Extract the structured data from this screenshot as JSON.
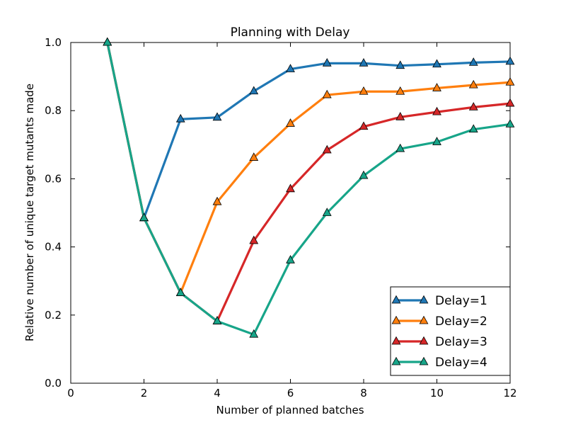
{
  "chart_data": {
    "type": "line",
    "title": "Planning with Delay",
    "xlabel": "Number of planned batches",
    "ylabel": "Relative number of unique target mutants made",
    "xlim": [
      0,
      12
    ],
    "ylim": [
      0,
      1.0
    ],
    "x_ticks": [
      "0",
      "2",
      "4",
      "6",
      "8",
      "10",
      "12"
    ],
    "y_ticks": [
      "0.0",
      "0.2",
      "0.4",
      "0.6",
      "0.8",
      "1.0"
    ],
    "grid": false,
    "legend_position": "bottom-right",
    "marker": "triangle",
    "series": [
      {
        "name": "Delay=1",
        "color": "#1f77b4",
        "x": [
          1,
          2,
          3,
          4,
          5,
          6,
          7,
          8,
          9,
          10,
          11,
          12
        ],
        "y": [
          1.0,
          0.485,
          0.775,
          0.78,
          0.857,
          0.922,
          0.939,
          0.939,
          0.932,
          0.936,
          0.941,
          0.944
        ]
      },
      {
        "name": "Delay=2",
        "color": "#ff7f0e",
        "x": [
          1,
          2,
          3,
          4,
          5,
          6,
          7,
          8,
          9,
          10,
          11,
          12
        ],
        "y": [
          1.0,
          0.485,
          0.265,
          0.532,
          0.662,
          0.762,
          0.846,
          0.856,
          0.856,
          0.866,
          0.875,
          0.883
        ]
      },
      {
        "name": "Delay=3",
        "color": "#d62728",
        "x": [
          1,
          2,
          3,
          4,
          5,
          6,
          7,
          8,
          9,
          10,
          11,
          12
        ],
        "y": [
          1.0,
          0.485,
          0.265,
          0.182,
          0.418,
          0.57,
          0.684,
          0.753,
          0.781,
          0.796,
          0.81,
          0.821
        ]
      },
      {
        "name": "Delay=4",
        "color": "#17a589",
        "x": [
          1,
          2,
          3,
          4,
          5,
          6,
          7,
          8,
          9,
          10,
          11,
          12
        ],
        "y": [
          1.0,
          0.485,
          0.265,
          0.182,
          0.143,
          0.361,
          0.5,
          0.609,
          0.688,
          0.708,
          0.745,
          0.76
        ]
      }
    ]
  }
}
